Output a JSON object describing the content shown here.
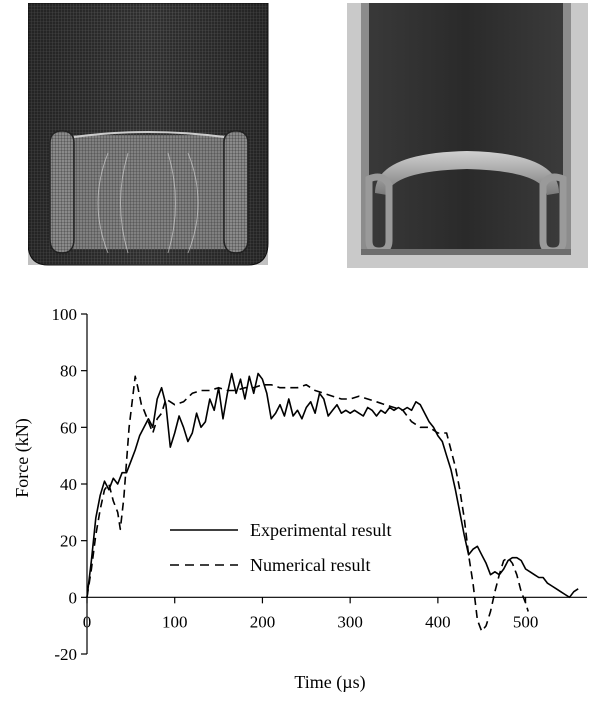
{
  "figure": {
    "top_left_image": "fe-mesh-model-cross-section",
    "top_right_image": "tested-specimen-photo-cross-section"
  },
  "chart_data": {
    "type": "line",
    "title": "",
    "xlabel": "Time (µs)",
    "ylabel": "Force (kN)",
    "xlim": [
      0,
      570
    ],
    "ylim": [
      -20,
      100
    ],
    "xticks": [
      0,
      100,
      200,
      300,
      400,
      500
    ],
    "yticks": [
      -20,
      0,
      20,
      40,
      60,
      80,
      100
    ],
    "grid": false,
    "legend_position": "center-left",
    "series": [
      {
        "name": "Experimental result",
        "style": "solid",
        "color": "#000000",
        "points": [
          [
            0,
            0
          ],
          [
            5,
            13
          ],
          [
            10,
            28
          ],
          [
            15,
            36
          ],
          [
            20,
            41
          ],
          [
            25,
            38
          ],
          [
            30,
            42
          ],
          [
            35,
            40
          ],
          [
            40,
            44
          ],
          [
            45,
            44
          ],
          [
            50,
            48
          ],
          [
            55,
            52
          ],
          [
            60,
            57
          ],
          [
            65,
            60
          ],
          [
            70,
            63
          ],
          [
            75,
            60
          ],
          [
            80,
            70
          ],
          [
            85,
            74
          ],
          [
            90,
            68
          ],
          [
            95,
            53
          ],
          [
            100,
            58
          ],
          [
            105,
            64
          ],
          [
            110,
            60
          ],
          [
            115,
            55
          ],
          [
            120,
            58
          ],
          [
            125,
            65
          ],
          [
            130,
            60
          ],
          [
            135,
            62
          ],
          [
            140,
            70
          ],
          [
            145,
            66
          ],
          [
            150,
            74
          ],
          [
            155,
            63
          ],
          [
            160,
            72
          ],
          [
            165,
            79
          ],
          [
            170,
            72
          ],
          [
            175,
            77
          ],
          [
            180,
            70
          ],
          [
            185,
            78
          ],
          [
            190,
            72
          ],
          [
            195,
            79
          ],
          [
            200,
            77
          ],
          [
            205,
            72
          ],
          [
            210,
            63
          ],
          [
            215,
            65
          ],
          [
            220,
            68
          ],
          [
            225,
            64
          ],
          [
            230,
            70
          ],
          [
            235,
            64
          ],
          [
            240,
            66
          ],
          [
            245,
            63
          ],
          [
            250,
            67
          ],
          [
            255,
            69
          ],
          [
            260,
            65
          ],
          [
            265,
            72
          ],
          [
            270,
            70
          ],
          [
            275,
            64
          ],
          [
            280,
            66
          ],
          [
            285,
            68
          ],
          [
            290,
            65
          ],
          [
            295,
            66
          ],
          [
            300,
            65
          ],
          [
            305,
            66
          ],
          [
            310,
            65
          ],
          [
            315,
            64
          ],
          [
            320,
            67
          ],
          [
            325,
            66
          ],
          [
            330,
            64
          ],
          [
            335,
            66
          ],
          [
            340,
            65
          ],
          [
            345,
            67
          ],
          [
            350,
            66
          ],
          [
            355,
            67
          ],
          [
            360,
            66
          ],
          [
            365,
            67
          ],
          [
            370,
            66
          ],
          [
            375,
            69
          ],
          [
            380,
            68
          ],
          [
            385,
            65
          ],
          [
            390,
            62
          ],
          [
            395,
            60
          ],
          [
            400,
            57
          ],
          [
            405,
            55
          ],
          [
            410,
            50
          ],
          [
            415,
            45
          ],
          [
            420,
            38
          ],
          [
            425,
            30
          ],
          [
            430,
            22
          ],
          [
            435,
            15
          ],
          [
            440,
            17
          ],
          [
            445,
            18
          ],
          [
            450,
            15
          ],
          [
            455,
            12
          ],
          [
            460,
            8
          ],
          [
            465,
            9
          ],
          [
            470,
            8
          ],
          [
            475,
            10
          ],
          [
            480,
            13
          ],
          [
            485,
            14
          ],
          [
            490,
            14
          ],
          [
            495,
            13
          ],
          [
            500,
            10
          ],
          [
            505,
            9
          ],
          [
            510,
            8
          ],
          [
            515,
            7
          ],
          [
            520,
            7
          ],
          [
            525,
            5
          ],
          [
            530,
            4
          ],
          [
            535,
            3
          ],
          [
            540,
            2
          ],
          [
            545,
            1
          ],
          [
            550,
            0
          ],
          [
            555,
            2
          ],
          [
            560,
            3
          ]
        ]
      },
      {
        "name": "Numerical result",
        "style": "dashed",
        "color": "#000000",
        "points": [
          [
            0,
            0
          ],
          [
            5,
            10
          ],
          [
            10,
            22
          ],
          [
            15,
            31
          ],
          [
            20,
            38
          ],
          [
            25,
            40
          ],
          [
            30,
            34
          ],
          [
            35,
            30
          ],
          [
            38,
            24
          ],
          [
            42,
            35
          ],
          [
            48,
            60
          ],
          [
            55,
            78
          ],
          [
            58,
            74
          ],
          [
            62,
            68
          ],
          [
            65,
            66
          ],
          [
            70,
            62
          ],
          [
            75,
            58
          ],
          [
            80,
            63
          ],
          [
            85,
            65
          ],
          [
            90,
            70
          ],
          [
            95,
            69
          ],
          [
            100,
            68
          ],
          [
            110,
            69
          ],
          [
            120,
            72
          ],
          [
            130,
            73
          ],
          [
            140,
            73
          ],
          [
            150,
            74
          ],
          [
            160,
            73
          ],
          [
            170,
            73
          ],
          [
            180,
            74
          ],
          [
            190,
            74
          ],
          [
            200,
            75
          ],
          [
            210,
            75
          ],
          [
            220,
            74
          ],
          [
            230,
            74
          ],
          [
            240,
            74
          ],
          [
            250,
            75
          ],
          [
            260,
            73
          ],
          [
            270,
            72
          ],
          [
            280,
            71
          ],
          [
            290,
            70
          ],
          [
            300,
            70
          ],
          [
            310,
            71
          ],
          [
            320,
            70
          ],
          [
            330,
            69
          ],
          [
            340,
            68
          ],
          [
            350,
            67
          ],
          [
            360,
            66
          ],
          [
            370,
            62
          ],
          [
            380,
            60
          ],
          [
            390,
            60
          ],
          [
            400,
            58
          ],
          [
            410,
            58
          ],
          [
            415,
            52
          ],
          [
            420,
            46
          ],
          [
            425,
            38
          ],
          [
            430,
            28
          ],
          [
            435,
            15
          ],
          [
            440,
            5
          ],
          [
            445,
            -8
          ],
          [
            450,
            -12
          ],
          [
            455,
            -10
          ],
          [
            460,
            -5
          ],
          [
            465,
            2
          ],
          [
            470,
            8
          ],
          [
            475,
            13
          ],
          [
            480,
            14
          ],
          [
            485,
            12
          ],
          [
            490,
            8
          ],
          [
            495,
            2
          ],
          [
            500,
            -2
          ],
          [
            503,
            -5
          ]
        ]
      }
    ]
  }
}
